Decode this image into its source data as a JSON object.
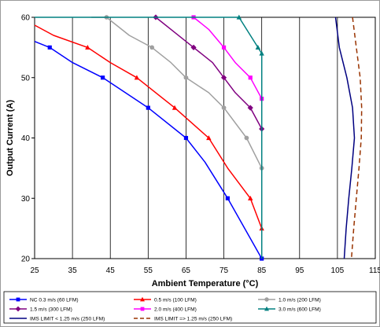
{
  "chart_data": {
    "type": "line",
    "title": "",
    "xlabel": "Ambient Temperature (°C)",
    "ylabel": "Output Current (A)",
    "xlim": [
      25,
      115
    ],
    "ylim": [
      20,
      60
    ],
    "x_ticks": [
      25,
      35,
      45,
      55,
      65,
      75,
      85,
      95,
      105,
      115
    ],
    "y_ticks": [
      20,
      30,
      40,
      50,
      60
    ],
    "grid": "vertical-major",
    "legend_position": "bottom",
    "series": [
      {
        "name": "NC 0.3 m/s (60 LFM)",
        "color": "#0000ff",
        "marker": "square",
        "line": "solid",
        "points": [
          [
            25,
            56
          ],
          [
            29,
            55
          ],
          [
            35,
            52.5
          ],
          [
            43,
            50
          ],
          [
            55,
            45
          ],
          [
            65,
            40
          ],
          [
            70,
            36
          ],
          [
            76,
            30
          ],
          [
            85,
            20
          ]
        ],
        "markers": [
          [
            29,
            55
          ],
          [
            43,
            50
          ],
          [
            55,
            45
          ],
          [
            65,
            40
          ],
          [
            76,
            30
          ],
          [
            85,
            20
          ]
        ]
      },
      {
        "name": "0.5 m/s (100 LFM)",
        "color": "#ff0000",
        "marker": "triangle",
        "line": "solid",
        "points": [
          [
            25,
            58.7
          ],
          [
            30,
            57
          ],
          [
            39,
            55
          ],
          [
            45,
            52.5
          ],
          [
            52,
            50
          ],
          [
            62,
            45
          ],
          [
            71,
            40
          ],
          [
            76,
            35
          ],
          [
            82,
            30
          ],
          [
            85,
            25
          ]
        ],
        "markers": [
          [
            39,
            55
          ],
          [
            52,
            50
          ],
          [
            62,
            45
          ],
          [
            71,
            40
          ],
          [
            82,
            30
          ],
          [
            85,
            25
          ]
        ]
      },
      {
        "name": "1.0 m/s (200 LFM)",
        "color": "#a0a0a0",
        "marker": "circle",
        "line": "solid",
        "points": [
          [
            40,
            60
          ],
          [
            44,
            60
          ],
          [
            50,
            57
          ],
          [
            56,
            55
          ],
          [
            61,
            52.5
          ],
          [
            65,
            50
          ],
          [
            71,
            47.5
          ],
          [
            75,
            45
          ],
          [
            81,
            40
          ],
          [
            85,
            35
          ]
        ],
        "markers": [
          [
            44,
            60
          ],
          [
            56,
            55
          ],
          [
            65,
            50
          ],
          [
            75,
            45
          ],
          [
            81,
            40
          ],
          [
            85,
            35
          ]
        ]
      },
      {
        "name": "1.5 m/s (300 LFM)",
        "color": "#800080",
        "marker": "diamond",
        "line": "solid",
        "points": [
          [
            57,
            60
          ],
          [
            62,
            57.5
          ],
          [
            67,
            55
          ],
          [
            72,
            52.5
          ],
          [
            75,
            50
          ],
          [
            78,
            47.5
          ],
          [
            82,
            45
          ],
          [
            85,
            41.5
          ]
        ],
        "markers": [
          [
            57,
            60
          ],
          [
            67,
            55
          ],
          [
            75,
            50
          ],
          [
            82,
            45
          ],
          [
            85,
            41.5
          ]
        ]
      },
      {
        "name": "2.0 m/s (400 LFM)",
        "color": "#ff00ff",
        "marker": "square",
        "line": "solid",
        "points": [
          [
            67,
            60
          ],
          [
            71,
            58
          ],
          [
            75,
            55
          ],
          [
            78,
            52.5
          ],
          [
            82,
            50
          ],
          [
            85,
            46.5
          ]
        ],
        "markers": [
          [
            67,
            60
          ],
          [
            75,
            55
          ],
          [
            82,
            50
          ],
          [
            85,
            46.5
          ]
        ]
      },
      {
        "name": "3.0 m/s (600 LFM)",
        "color": "#008080",
        "marker": "triangle",
        "line": "solid",
        "points": [
          [
            25,
            60
          ],
          [
            79,
            60
          ],
          [
            84,
            55
          ],
          [
            85,
            54
          ],
          [
            85,
            20
          ]
        ],
        "markers": [
          [
            79,
            60
          ],
          [
            84,
            55
          ],
          [
            85,
            54
          ]
        ]
      },
      {
        "name": "IMS LIMIT < 1.25 m/s (250 LFM)",
        "color": "#000080",
        "marker": "none",
        "line": "solid",
        "points": [
          [
            104.5,
            60
          ],
          [
            105.5,
            55
          ],
          [
            107.5,
            50
          ],
          [
            109,
            45
          ],
          [
            109.5,
            40
          ],
          [
            108.8,
            35
          ],
          [
            108,
            30
          ],
          [
            107.3,
            25
          ],
          [
            106.8,
            20
          ]
        ],
        "markers": []
      },
      {
        "name": "IMS LIMIT => 1.25 m/s (250 LFM)",
        "color": "#993300",
        "marker": "none",
        "line": "dashed",
        "points": [
          [
            109,
            60
          ],
          [
            110,
            55
          ],
          [
            111,
            50
          ],
          [
            111.4,
            45
          ],
          [
            111.3,
            40
          ],
          [
            110.7,
            35
          ],
          [
            110,
            30
          ],
          [
            109.3,
            25
          ],
          [
            108.7,
            20
          ]
        ],
        "markers": []
      }
    ]
  }
}
